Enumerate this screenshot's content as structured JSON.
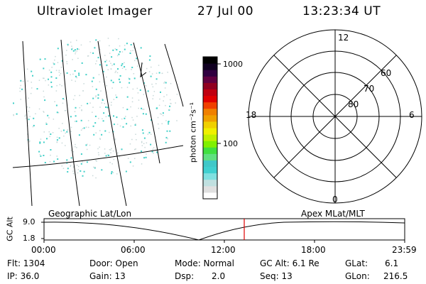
{
  "header": {
    "instrument": "Ultraviolet Imager",
    "date": "27 Jul 00",
    "time": "13:23:34 UT"
  },
  "colorbar": {
    "unit_label": "photon cm⁻²s⁻¹",
    "tick_high": "1000",
    "tick_low": "100",
    "colors": [
      "#ffffff",
      "#e0e0e0",
      "#c0e0e0",
      "#80e0e0",
      "#40d0d0",
      "#40c8c8",
      "#60e080",
      "#40e040",
      "#80f000",
      "#c0f000",
      "#f0f000",
      "#f0d000",
      "#f0a000",
      "#f08000",
      "#f04000",
      "#e00000",
      "#c00010",
      "#900020",
      "#600040",
      "#300040",
      "#100020",
      "#000000"
    ]
  },
  "polar": {
    "mlt_top": "12",
    "mlt_left": "18",
    "mlt_right": "6",
    "mlt_bottom": "0",
    "lat_60": "60",
    "lat_70": "70",
    "lat_80": "80"
  },
  "labels": {
    "geographic": "Geographic Lat/Lon",
    "apex": "Apex MLat/MLT"
  },
  "orbit_plot": {
    "ylabel": "GC Alt",
    "ymax": "9.0",
    "ymin": "1.8",
    "xticks": [
      "00:00",
      "06:00",
      "12:00",
      "18:00",
      "23:59"
    ]
  },
  "info": {
    "flt": "Flt: 1304",
    "ip": "IP: 36.0",
    "door": "Door: Open",
    "gain": "Gain: 13",
    "mode": "Mode: Normal",
    "dsp_label": "Dsp:",
    "dsp_value": "2.0",
    "gcalt": "GC Alt: 6.1 Re",
    "seq": "Seq: 13",
    "glat_label": "GLat:",
    "glat_value": "6.1",
    "glon_label": "GLon:",
    "glon_value": "216.5"
  }
}
